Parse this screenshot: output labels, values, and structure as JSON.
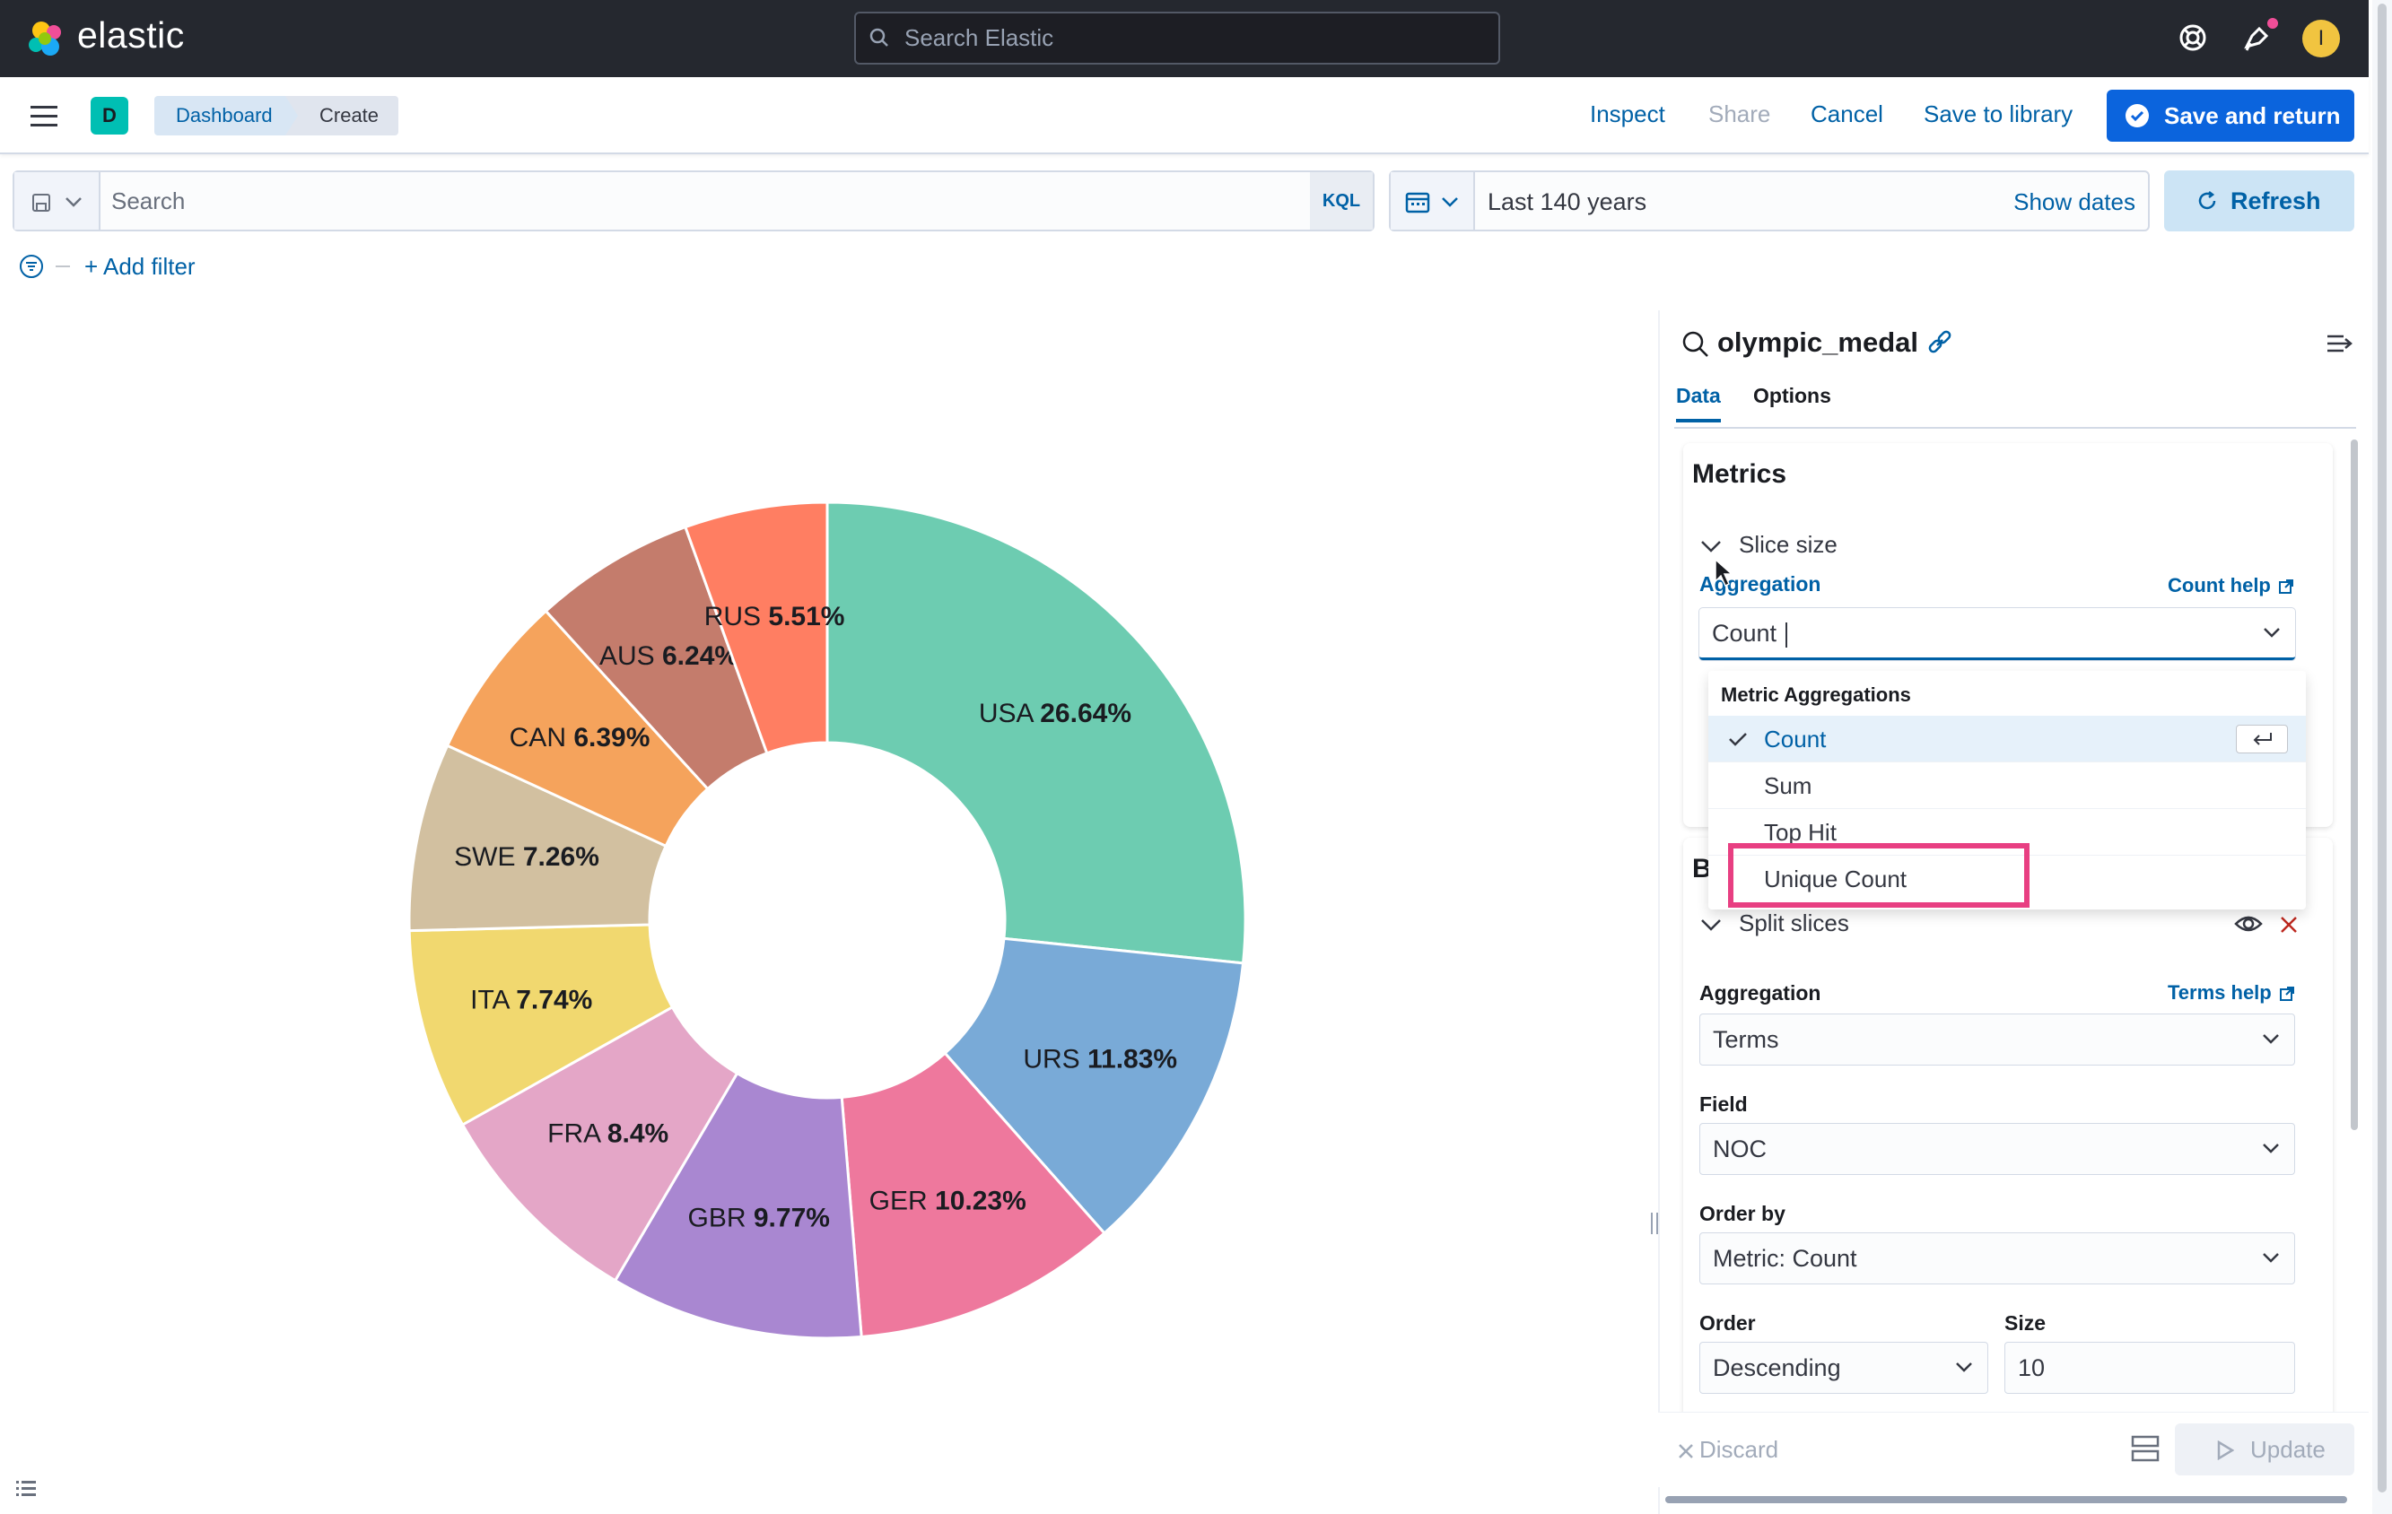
{
  "header": {
    "brand": "elastic",
    "search_placeholder": "Search Elastic",
    "user_initial": "I"
  },
  "nav": {
    "space_initial": "D",
    "breadcrumbs": [
      "Dashboard",
      "Create"
    ],
    "inspect": "Inspect",
    "share": "Share",
    "cancel": "Cancel",
    "save_to_library": "Save to library",
    "save_and_return": "Save and return"
  },
  "query": {
    "search_placeholder": "Search",
    "language": "KQL",
    "time_range": "Last 140 years",
    "show_dates": "Show dates",
    "refresh": "Refresh",
    "add_filter": "+ Add filter"
  },
  "chart_data": {
    "type": "pie",
    "donut": true,
    "categories": [
      "USA",
      "URS",
      "GER",
      "GBR",
      "FRA",
      "ITA",
      "SWE",
      "CAN",
      "AUS",
      "RUS"
    ],
    "values": [
      26.64,
      11.83,
      10.23,
      9.77,
      8.4,
      7.74,
      7.26,
      6.39,
      6.24,
      5.51
    ],
    "labels": [
      "26.64%",
      "11.83%",
      "10.23%",
      "9.77%",
      "8.4%",
      "7.74%",
      "7.26%",
      "6.39%",
      "6.24%",
      "5.51%"
    ],
    "colors": [
      "#6dccb1",
      "#79aad7",
      "#ee789d",
      "#a987d1",
      "#e4a6c7",
      "#f1d86f",
      "#d2c0a0",
      "#f5a35c",
      "#c47c6c",
      "#ff7e62"
    ]
  },
  "sidebar": {
    "index_name": "olympic_medal",
    "tabs": [
      "Data",
      "Options"
    ],
    "metrics_title": "Metrics",
    "slice_size": "Slice size",
    "aggregation_label": "Aggregation",
    "count_help": "Count help",
    "aggregation_value": "Count",
    "dropdown": {
      "group_label": "Metric Aggregations",
      "options": [
        "Count",
        "Sum",
        "Top Hit",
        "Unique Count"
      ]
    },
    "buckets_title": "B",
    "split_slices": "Split slices",
    "bucket_agg_label": "Aggregation",
    "terms_help": "Terms help",
    "bucket_agg_value": "Terms",
    "field_label": "Field",
    "field_value": "NOC",
    "order_by_label": "Order by",
    "order_by_value": "Metric: Count",
    "order_label": "Order",
    "order_value": "Descending",
    "size_label": "Size",
    "size_value": "10",
    "discard": "Discard",
    "update": "Update"
  }
}
